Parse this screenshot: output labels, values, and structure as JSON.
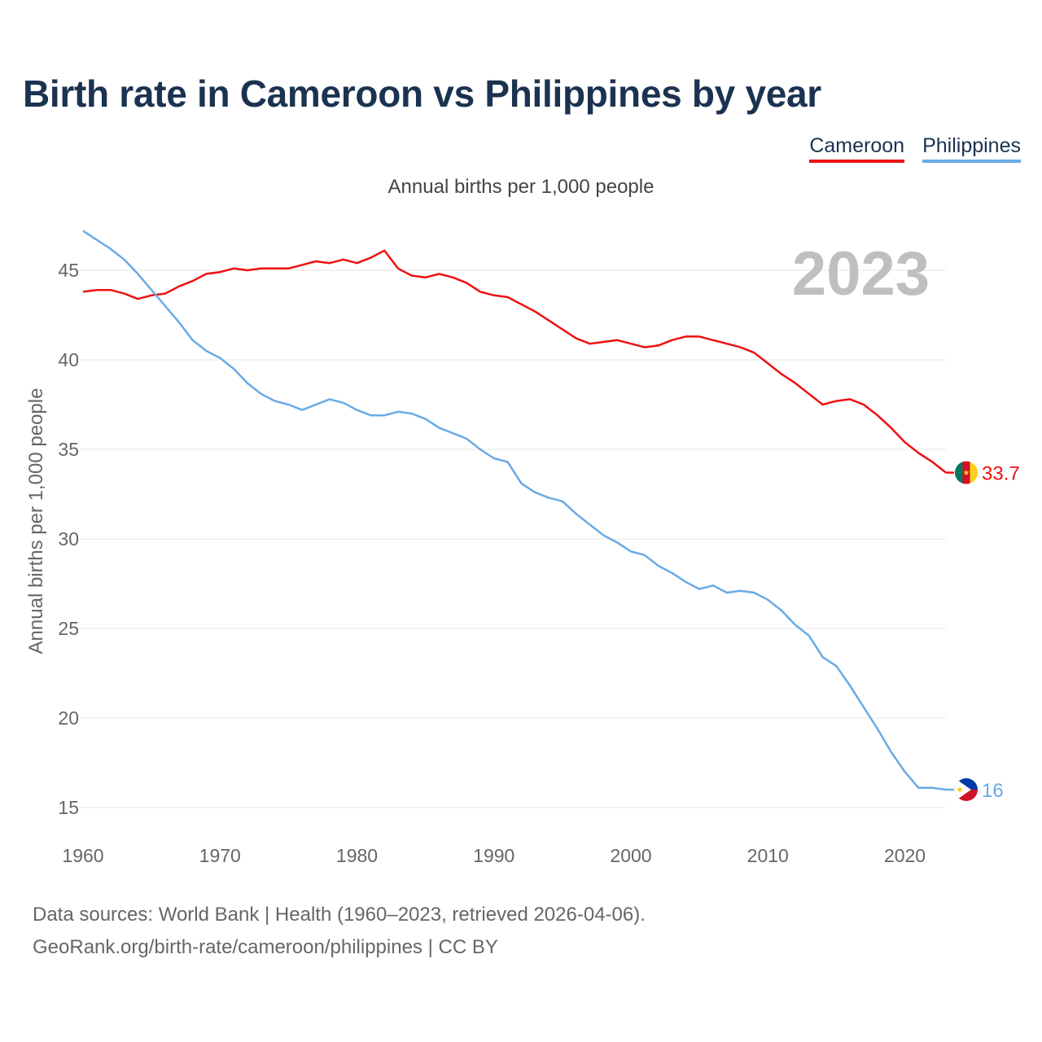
{
  "title": "Birth rate in Cameroon vs Philippines by year",
  "subtitle": "Annual births per 1,000 people",
  "year_label": "2023",
  "footer": {
    "line1": "Data sources: World Bank | Health (1960–2023, retrieved 2026-04-06).",
    "line2": "GeoRank.org/birth-rate/cameroon/philippines | CC BY"
  },
  "legend": [
    {
      "name": "Cameroon",
      "color": "#ee1111"
    },
    {
      "name": "Philippines",
      "color": "#6aaae6"
    }
  ],
  "chart_data": {
    "type": "line",
    "title": "Birth rate in Cameroon vs Philippines by year",
    "ylabel": "Annual births per 1,000 people",
    "xlabel": "",
    "xlim": [
      1960,
      2023
    ],
    "ylim": [
      14,
      48
    ],
    "x_ticks": [
      1960,
      1970,
      1980,
      1990,
      2000,
      2010,
      2020
    ],
    "y_ticks": [
      15,
      20,
      25,
      30,
      35,
      40,
      45
    ],
    "grid": true,
    "x": [
      1960,
      1961,
      1962,
      1963,
      1964,
      1965,
      1966,
      1967,
      1968,
      1969,
      1970,
      1971,
      1972,
      1973,
      1974,
      1975,
      1976,
      1977,
      1978,
      1979,
      1980,
      1981,
      1982,
      1983,
      1984,
      1985,
      1986,
      1987,
      1988,
      1989,
      1990,
      1991,
      1992,
      1993,
      1994,
      1995,
      1996,
      1997,
      1998,
      1999,
      2000,
      2001,
      2002,
      2003,
      2004,
      2005,
      2006,
      2007,
      2008,
      2009,
      2010,
      2011,
      2012,
      2013,
      2014,
      2015,
      2016,
      2017,
      2018,
      2019,
      2020,
      2021,
      2022,
      2023
    ],
    "series": [
      {
        "name": "Cameroon",
        "color": "#ee1111",
        "end_label": "33.7",
        "values": [
          43.8,
          43.9,
          43.9,
          43.7,
          43.4,
          43.6,
          43.7,
          44.1,
          44.4,
          44.8,
          44.9,
          45.1,
          45.0,
          45.1,
          45.1,
          45.1,
          45.3,
          45.5,
          45.4,
          45.6,
          45.4,
          45.7,
          46.1,
          45.1,
          44.7,
          44.6,
          44.8,
          44.6,
          44.3,
          43.8,
          43.6,
          43.5,
          43.1,
          42.7,
          42.2,
          41.7,
          41.2,
          40.9,
          41.0,
          41.1,
          40.9,
          40.7,
          40.8,
          41.1,
          41.3,
          41.3,
          41.1,
          40.9,
          40.7,
          40.4,
          39.8,
          39.2,
          38.7,
          38.1,
          37.5,
          37.7,
          37.8,
          37.5,
          36.9,
          36.2,
          35.4,
          34.8,
          34.3,
          33.7
        ]
      },
      {
        "name": "Philippines",
        "color": "#6aaae6",
        "end_label": "16",
        "values": [
          47.2,
          46.7,
          46.2,
          45.6,
          44.8,
          43.9,
          43.0,
          42.1,
          41.1,
          40.5,
          40.1,
          39.5,
          38.7,
          38.1,
          37.7,
          37.5,
          37.2,
          37.5,
          37.8,
          37.6,
          37.2,
          36.9,
          36.9,
          37.1,
          37.0,
          36.7,
          36.2,
          35.9,
          35.6,
          35.0,
          34.5,
          34.3,
          33.1,
          32.6,
          32.3,
          32.1,
          31.4,
          30.8,
          30.2,
          29.8,
          29.3,
          29.1,
          28.5,
          28.1,
          27.6,
          27.2,
          27.4,
          27.0,
          27.1,
          27.0,
          26.6,
          26.0,
          25.2,
          24.6,
          23.4,
          22.9,
          21.8,
          20.6,
          19.4,
          18.1,
          17.0,
          16.1,
          16.1,
          16.0
        ]
      }
    ]
  }
}
